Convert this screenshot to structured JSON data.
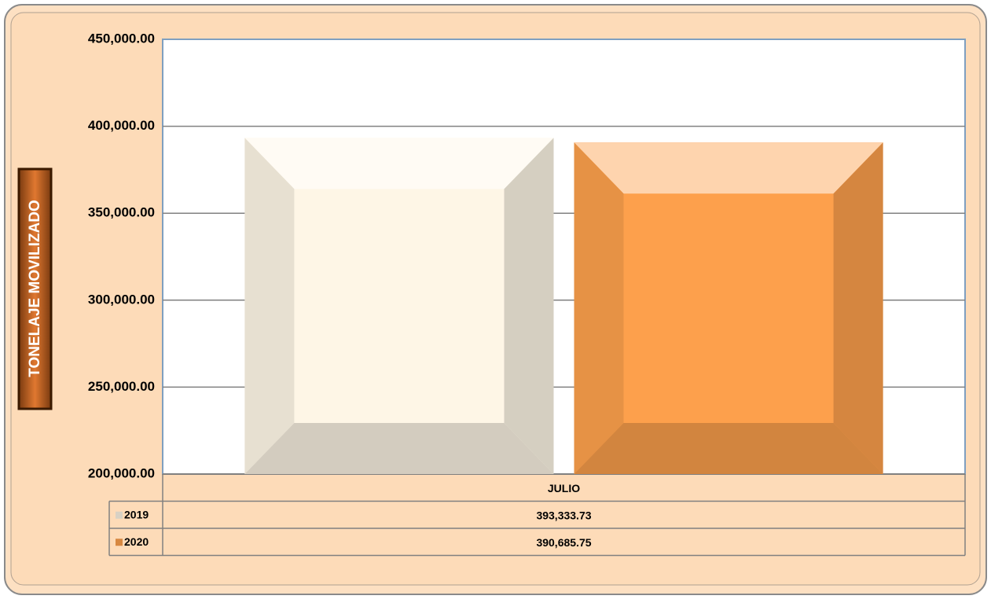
{
  "chart_data": {
    "type": "bar",
    "y_axis_label": "TONELAJE MOVILIZADO",
    "categories": [
      "JULIO"
    ],
    "series": [
      {
        "name": "2019",
        "color": "#fef6e6",
        "values": [
          393333.73
        ],
        "value_labels": [
          "393,333.73"
        ]
      },
      {
        "name": "2020",
        "color": "#fda04c",
        "values": [
          390685.75
        ],
        "value_labels": [
          "390,685.75"
        ]
      }
    ],
    "ylim": [
      200000,
      450000
    ],
    "yticks": [
      {
        "value": 200000,
        "label": "200,000.00"
      },
      {
        "value": 250000,
        "label": "250,000.00"
      },
      {
        "value": 300000,
        "label": "300,000.00"
      },
      {
        "value": 350000,
        "label": "350,000.00"
      },
      {
        "value": 400000,
        "label": "400,000.00"
      },
      {
        "value": 450000,
        "label": "450,000.00"
      }
    ],
    "grid": true,
    "data_table": true
  }
}
